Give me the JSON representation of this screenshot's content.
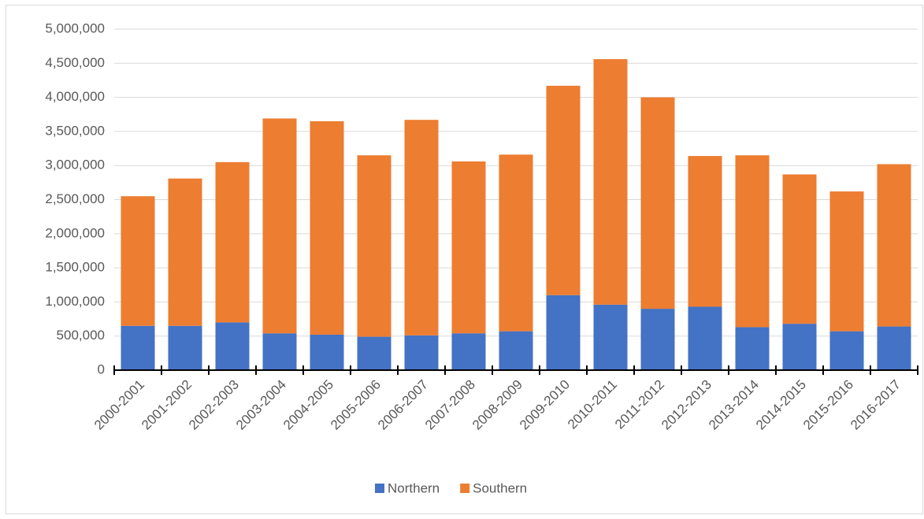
{
  "chart_data": {
    "type": "stacked-bar",
    "categories": [
      "2000-2001",
      "2001-2002",
      "2002-2003",
      "2003-2004",
      "2004-2005",
      "2005-2006",
      "2006-2007",
      "2007-2008",
      "2008-2009",
      "2009-2010",
      "2010-2011",
      "2011-2012",
      "2012-2013",
      "2013-2014",
      "2014-2015",
      "2015-2016",
      "2016-2017"
    ],
    "series": [
      {
        "name": "Northern",
        "color": "#4472c4",
        "values": [
          650000,
          650000,
          700000,
          540000,
          520000,
          490000,
          510000,
          540000,
          570000,
          1100000,
          960000,
          900000,
          930000,
          630000,
          680000,
          570000,
          640000
        ]
      },
      {
        "name": "Southern",
        "color": "#ed7d31",
        "values": [
          1900000,
          2160000,
          2350000,
          3150000,
          3130000,
          2660000,
          3160000,
          2520000,
          2590000,
          3070000,
          3600000,
          3100000,
          2210000,
          2520000,
          2190000,
          2050000,
          2380000
        ]
      }
    ],
    "ylim": [
      0,
      5000000
    ],
    "yticks": [
      0,
      {
        "value": 500000,
        "label": "500,000"
      },
      {
        "value": 1000000,
        "label": "1,000,000"
      },
      {
        "value": 1500000,
        "label": "1,500,000"
      },
      {
        "value": 2000000,
        "label": "2,000,000"
      },
      {
        "value": 2500000,
        "label": "2,500,000"
      },
      {
        "value": 3000000,
        "label": "3,000,000"
      },
      {
        "value": 3500000,
        "label": "3,500,000"
      },
      {
        "value": 4000000,
        "label": "4,000,000"
      },
      {
        "value": 4500000,
        "label": "4,500,000"
      },
      {
        "value": 5000000,
        "label": "5,000,000"
      }
    ],
    "grid": true,
    "legend": "bottom"
  }
}
